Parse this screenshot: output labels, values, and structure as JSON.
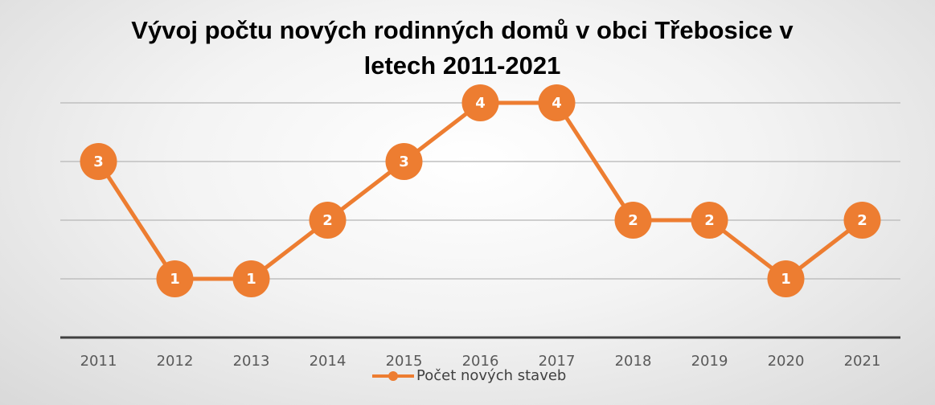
{
  "chart_data": {
    "type": "line",
    "title": "Vývoj počtu nových rodinných domů v obci Třebosice v letech 2011-2021",
    "categories": [
      "2011",
      "2012",
      "2013",
      "2014",
      "2015",
      "2016",
      "2017",
      "2018",
      "2019",
      "2020",
      "2021"
    ],
    "series": [
      {
        "name": "Počet nových staveb",
        "color": "#ed7d31",
        "values": [
          3,
          1,
          1,
          2,
          3,
          4,
          4,
          2,
          2,
          1,
          2
        ]
      }
    ],
    "ylim": [
      0,
      4
    ],
    "yticks": [
      0,
      1,
      2,
      3,
      4
    ],
    "grid": true,
    "legend": "bottom"
  }
}
